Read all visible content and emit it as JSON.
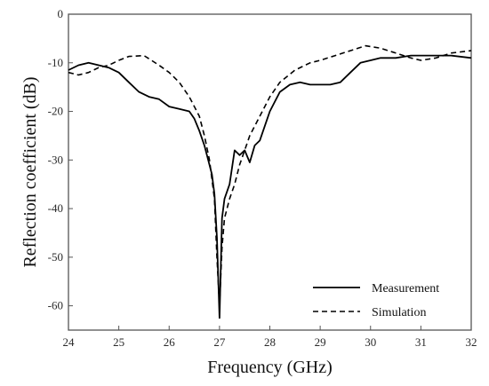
{
  "chart_data": {
    "type": "line",
    "title": "",
    "xlabel": "Frequency (GHz)",
    "ylabel": "Reflection coefficient (dB)",
    "xlim": [
      24,
      32
    ],
    "ylim": [
      -65,
      0
    ],
    "x_ticks": [
      "24",
      "25",
      "26",
      "27",
      "28",
      "29",
      "30",
      "31",
      "32"
    ],
    "y_ticks": [
      "0",
      "-10",
      "-20",
      "-30",
      "-40",
      "-50",
      "-60"
    ],
    "grid": false,
    "legend_position": "bottom-right",
    "series": [
      {
        "name": "Measurement",
        "style": "solid",
        "color": "#000000",
        "x": [
          24.0,
          24.2,
          24.4,
          24.6,
          24.8,
          25.0,
          25.2,
          25.4,
          25.6,
          25.8,
          26.0,
          26.2,
          26.4,
          26.5,
          26.6,
          26.7,
          26.8,
          26.85,
          26.9,
          26.95,
          27.0,
          27.05,
          27.1,
          27.2,
          27.3,
          27.4,
          27.5,
          27.6,
          27.7,
          27.8,
          28.0,
          28.2,
          28.4,
          28.6,
          28.8,
          29.0,
          29.2,
          29.4,
          29.6,
          29.8,
          30.0,
          30.2,
          30.5,
          30.8,
          31.0,
          31.3,
          31.6,
          32.0
        ],
        "y": [
          -11.5,
          -10.5,
          -10.0,
          -10.5,
          -11.0,
          -12.0,
          -14.0,
          -16.0,
          -17.0,
          -17.5,
          -19.0,
          -19.5,
          -20.0,
          -21.5,
          -24.0,
          -27.0,
          -31.0,
          -33.0,
          -37.0,
          -46.0,
          -62.5,
          -42.0,
          -38.0,
          -35.0,
          -28.0,
          -29.0,
          -28.0,
          -30.5,
          -27.0,
          -26.0,
          -20.0,
          -16.0,
          -14.5,
          -14.0,
          -14.5,
          -14.5,
          -14.5,
          -14.0,
          -12.0,
          -10.0,
          -9.5,
          -9.0,
          -9.0,
          -8.5,
          -8.5,
          -8.5,
          -8.5,
          -9.0
        ]
      },
      {
        "name": "Simulation",
        "style": "dashed",
        "color": "#000000",
        "x": [
          24.0,
          24.2,
          24.4,
          24.6,
          24.8,
          25.0,
          25.2,
          25.5,
          25.8,
          26.0,
          26.2,
          26.4,
          26.6,
          26.7,
          26.8,
          26.9,
          26.95,
          27.0,
          27.05,
          27.1,
          27.2,
          27.3,
          27.4,
          27.6,
          27.8,
          28.0,
          28.2,
          28.5,
          28.8,
          29.0,
          29.3,
          29.6,
          29.9,
          30.2,
          30.5,
          30.8,
          31.0,
          31.3,
          31.6,
          32.0
        ],
        "y": [
          -12.0,
          -12.5,
          -12.0,
          -11.0,
          -10.5,
          -9.5,
          -8.7,
          -8.5,
          -10.5,
          -12.0,
          -14.0,
          -17.0,
          -21.0,
          -25.0,
          -30.0,
          -38.0,
          -50.0,
          -60.0,
          -48.0,
          -42.0,
          -38.0,
          -35.0,
          -31.0,
          -25.0,
          -21.0,
          -17.0,
          -14.0,
          -11.5,
          -10.0,
          -9.5,
          -8.5,
          -7.5,
          -6.5,
          -7.0,
          -8.0,
          -9.0,
          -9.5,
          -9.0,
          -8.0,
          -7.5
        ]
      }
    ]
  }
}
